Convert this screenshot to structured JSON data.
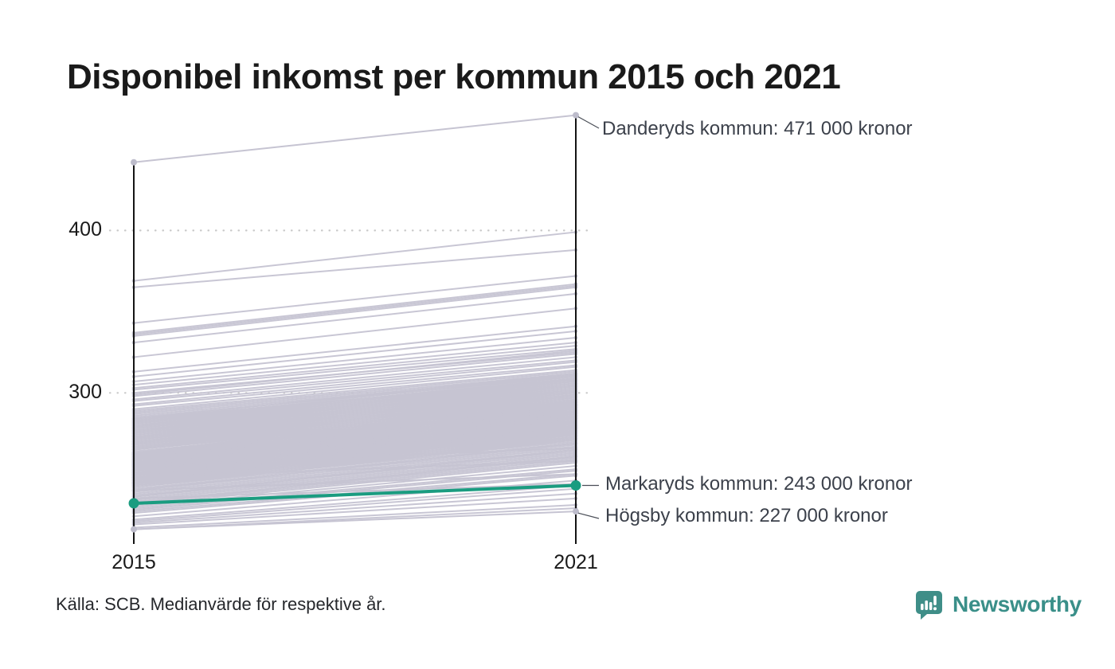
{
  "title": "Disponibel inkomst per kommun 2015 och 2021",
  "source": "Källa: SCB. Medianvärde för respektive år.",
  "branding": {
    "name": "Newsworthy",
    "icon": "newsworthy-speech-bubble-bar-chart-icon",
    "text_color": "#3a8f89",
    "icon_color": "#3f8e88"
  },
  "colors": {
    "background_lines": "#c6c4d2",
    "background_dots": "#bdbccb",
    "highlight": "#1a9c80",
    "axis": "#141414",
    "grid": "#c9c9c9",
    "annotation_text": "#3c414b",
    "title_text": "#1a1a1a"
  },
  "chart_data": {
    "type": "line",
    "subtype": "slope",
    "x": [
      2015,
      2021
    ],
    "x_labels": [
      "2015",
      "2021"
    ],
    "y_ticks": [
      {
        "value": 400,
        "label": "400"
      },
      {
        "value": 300,
        "label": "300"
      }
    ],
    "ylim": [
      207,
      480
    ],
    "grid": "dotted-horizontal",
    "legend": "none",
    "series": [
      {
        "name": "Danderyds kommun",
        "values": [
          442,
          471
        ],
        "label": "Danderyds kommun: 471 000 kronor",
        "emphasis": "top-outlier",
        "color": "#c6c4d2"
      },
      {
        "name": "Markaryds kommun",
        "values": [
          232,
          243
        ],
        "label": "Markaryds kommun: 243 000 kronor",
        "emphasis": "highlight",
        "color": "#1a9c80"
      },
      {
        "name": "Högsby kommun",
        "values": [
          216,
          227
        ],
        "label": "Högsby kommun: 227 000 kronor",
        "emphasis": "bottom-outlier",
        "color": "#c6c4d2"
      }
    ],
    "background_series_values": [
      [
        369,
        399
      ],
      [
        365,
        388
      ],
      [
        343,
        372
      ],
      [
        337,
        367
      ],
      [
        336,
        366
      ],
      [
        335,
        365
      ],
      [
        331,
        361
      ],
      [
        322,
        352
      ],
      [
        313,
        341
      ],
      [
        310,
        338
      ],
      [
        307,
        334
      ],
      [
        305,
        331
      ],
      [
        303,
        329
      ],
      [
        302,
        327
      ],
      [
        300,
        325
      ],
      [
        299,
        326
      ],
      [
        298,
        324
      ],
      [
        296,
        322
      ],
      [
        295,
        320
      ],
      [
        293,
        319
      ],
      [
        292,
        317
      ],
      [
        290,
        316
      ],
      [
        289,
        314
      ],
      [
        288,
        313
      ],
      [
        287,
        312
      ],
      [
        286,
        311
      ],
      [
        285,
        310
      ],
      [
        284,
        308
      ],
      [
        284,
        312
      ],
      [
        283,
        309
      ],
      [
        283,
        311
      ],
      [
        282,
        308
      ],
      [
        282,
        310
      ],
      [
        281,
        307
      ],
      [
        281,
        309
      ],
      [
        280,
        306
      ],
      [
        280,
        308
      ],
      [
        279,
        305
      ],
      [
        279,
        307
      ],
      [
        278,
        304
      ],
      [
        278,
        306
      ],
      [
        277,
        303
      ],
      [
        277,
        305
      ],
      [
        276,
        302
      ],
      [
        276,
        304
      ],
      [
        275,
        301
      ],
      [
        275,
        303
      ],
      [
        274,
        300
      ],
      [
        274,
        302
      ],
      [
        273,
        299
      ],
      [
        273,
        301
      ],
      [
        272,
        298
      ],
      [
        272,
        300
      ],
      [
        271,
        297
      ],
      [
        271,
        299
      ],
      [
        270,
        296
      ],
      [
        270,
        298
      ],
      [
        269,
        295
      ],
      [
        269,
        297
      ],
      [
        268,
        294
      ],
      [
        268,
        296
      ],
      [
        267,
        293
      ],
      [
        267,
        295
      ],
      [
        266,
        292
      ],
      [
        266,
        294
      ],
      [
        265,
        291
      ],
      [
        265,
        293
      ],
      [
        264,
        290
      ],
      [
        263,
        289
      ],
      [
        263,
        292
      ],
      [
        263,
        295
      ],
      [
        262,
        288
      ],
      [
        262,
        291
      ],
      [
        262,
        294
      ],
      [
        261,
        287
      ],
      [
        261,
        290
      ],
      [
        261,
        293
      ],
      [
        260,
        286
      ],
      [
        260,
        289
      ],
      [
        260,
        292
      ],
      [
        259,
        285
      ],
      [
        259,
        288
      ],
      [
        259,
        291
      ],
      [
        258,
        284
      ],
      [
        258,
        287
      ],
      [
        258,
        290
      ],
      [
        257,
        283
      ],
      [
        257,
        286
      ],
      [
        257,
        289
      ],
      [
        256,
        282
      ],
      [
        256,
        285
      ],
      [
        256,
        288
      ],
      [
        255,
        281
      ],
      [
        255,
        284
      ],
      [
        255,
        287
      ],
      [
        254,
        280
      ],
      [
        254,
        283
      ],
      [
        254,
        286
      ],
      [
        253,
        279
      ],
      [
        253,
        282
      ],
      [
        253,
        285
      ],
      [
        252,
        278
      ],
      [
        252,
        281
      ],
      [
        252,
        284
      ],
      [
        251,
        277
      ],
      [
        251,
        280
      ],
      [
        251,
        283
      ],
      [
        250,
        276
      ],
      [
        250,
        279
      ],
      [
        250,
        282
      ],
      [
        249,
        275
      ],
      [
        249,
        278
      ],
      [
        249,
        281
      ],
      [
        248,
        274
      ],
      [
        248,
        277
      ],
      [
        248,
        280
      ],
      [
        247,
        273
      ],
      [
        247,
        276
      ],
      [
        247,
        279
      ],
      [
        246,
        272
      ],
      [
        246,
        275
      ],
      [
        246,
        278
      ],
      [
        245,
        271
      ],
      [
        245,
        274
      ],
      [
        245,
        277
      ],
      [
        244,
        270
      ],
      [
        244,
        273
      ],
      [
        244,
        276
      ],
      [
        243,
        269
      ],
      [
        243,
        272
      ],
      [
        242,
        268
      ],
      [
        242,
        271
      ],
      [
        241,
        267
      ],
      [
        240,
        266
      ],
      [
        240,
        269
      ],
      [
        239,
        265
      ],
      [
        238,
        264
      ],
      [
        237,
        263
      ],
      [
        236,
        262
      ],
      [
        236,
        265
      ],
      [
        235,
        261
      ],
      [
        234,
        260
      ],
      [
        233,
        259
      ],
      [
        232,
        258
      ],
      [
        232,
        261
      ],
      [
        231,
        257
      ],
      [
        230,
        255
      ],
      [
        229,
        253
      ],
      [
        228,
        252
      ],
      [
        227,
        250
      ],
      [
        226,
        249
      ],
      [
        224,
        246
      ],
      [
        222,
        243
      ],
      [
        221,
        241
      ],
      [
        220,
        238
      ],
      [
        219,
        235
      ],
      [
        217,
        231
      ],
      [
        216,
        229
      ],
      [
        262,
        274
      ],
      [
        255,
        266
      ],
      [
        248,
        258
      ],
      [
        240,
        250
      ],
      [
        235,
        244
      ]
    ]
  }
}
